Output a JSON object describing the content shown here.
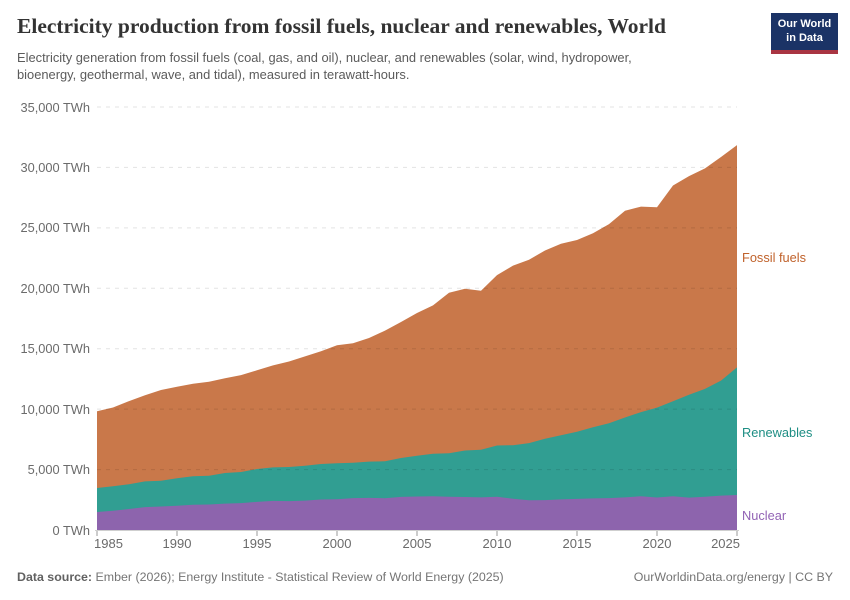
{
  "header": {
    "title": "Electricity production from fossil fuels, nuclear and renewables, World",
    "subtitle": "Electricity generation from fossil fuels (coal, gas, and oil), nuclear, and renewables (solar, wind, hydropower,\nbioenergy, geothermal, wave, and tidal), measured in terawatt-hours."
  },
  "logo": {
    "line1": "Our World",
    "line2": "in Data",
    "bg_color": "#1B3366",
    "stripe_color": "#A93542"
  },
  "footer": {
    "source_label": "Data source:",
    "source_text": " Ember (2026); Energy Institute - Statistical Review of World Energy (2025)",
    "credit": "OurWorldinData.org/energy | CC BY"
  },
  "chart_data": {
    "type": "area",
    "stacked": true,
    "unit": "TWh",
    "title": "Electricity production from fossil fuels, nuclear and renewables, World",
    "xlabel": "",
    "ylabel": "terawatt-hours",
    "ylim": [
      0,
      35000
    ],
    "ytick_step": 5000,
    "ytick_labels": [
      "0 TWh",
      "5,000 TWh",
      "10,000 TWh",
      "15,000 TWh",
      "20,000 TWh",
      "25,000 TWh",
      "30,000 TWh",
      "35,000 TWh"
    ],
    "xticks": [
      1985,
      1990,
      1995,
      2000,
      2005,
      2010,
      2015,
      2020,
      2025
    ],
    "grid": true,
    "legend": "right-edge-inline-labels",
    "x": [
      1985,
      1986,
      1987,
      1988,
      1989,
      1990,
      1991,
      1992,
      1993,
      1994,
      1995,
      1996,
      1997,
      1998,
      1999,
      2000,
      2001,
      2002,
      2003,
      2004,
      2005,
      2006,
      2007,
      2008,
      2009,
      2010,
      2011,
      2012,
      2013,
      2014,
      2015,
      2016,
      2017,
      2018,
      2019,
      2020,
      2021,
      2022,
      2023,
      2024,
      2025
    ],
    "series": [
      {
        "name": "Nuclear",
        "color": "#8D64AD",
        "label_color": "#9263B5",
        "values": [
          1489,
          1593,
          1735,
          1893,
          1945,
          2001,
          2096,
          2111,
          2186,
          2225,
          2322,
          2406,
          2390,
          2431,
          2525,
          2540,
          2637,
          2654,
          2635,
          2738,
          2768,
          2793,
          2748,
          2731,
          2697,
          2756,
          2584,
          2461,
          2478,
          2535,
          2571,
          2612,
          2639,
          2701,
          2796,
          2693,
          2800,
          2679,
          2743,
          2843,
          2900
        ]
      },
      {
        "name": "Renewables",
        "color": "#319E92",
        "label_color": "#1E8E84",
        "values": [
          1987,
          2025,
          2050,
          2132,
          2132,
          2288,
          2357,
          2380,
          2530,
          2575,
          2725,
          2775,
          2826,
          2884,
          2940,
          2991,
          2931,
          3005,
          3050,
          3221,
          3375,
          3512,
          3609,
          3851,
          3950,
          4232,
          4429,
          4728,
          5067,
          5302,
          5566,
          5890,
          6200,
          6608,
          6963,
          7435,
          7858,
          8510,
          8928,
          9520,
          10550
        ]
      },
      {
        "name": "Fossil fuels",
        "color": "#C9784A",
        "label_color": "#C0622B",
        "values": [
          6356,
          6520,
          6880,
          7130,
          7510,
          7560,
          7650,
          7780,
          7840,
          8020,
          8165,
          8440,
          8725,
          9045,
          9330,
          9760,
          9890,
          10230,
          10810,
          11250,
          11810,
          12280,
          13280,
          13380,
          13150,
          14100,
          14860,
          15180,
          15580,
          15840,
          15860,
          16050,
          16470,
          17100,
          17000,
          16570,
          17850,
          18090,
          18250,
          18500,
          18400
        ]
      }
    ]
  }
}
